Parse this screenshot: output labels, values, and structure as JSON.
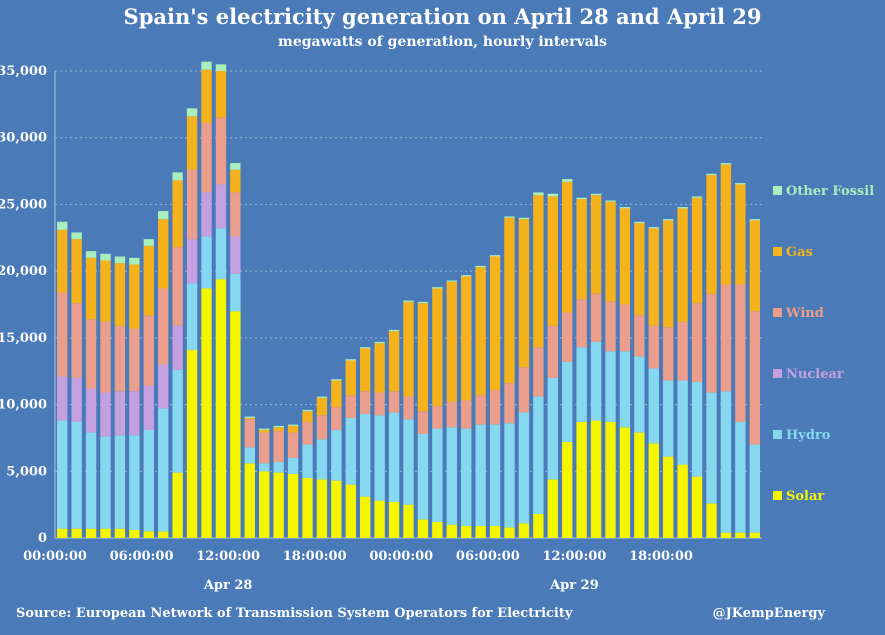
{
  "chart_data": {
    "type": "bar",
    "stacked": true,
    "title": "Spain's electricity generation on April 28 and April 29",
    "subtitle": "megawatts of generation, hourly intervals",
    "xlabel": "",
    "ylabel": "",
    "ylim": [
      0,
      35000
    ],
    "yticks": [
      "0",
      "5,000",
      "10,000",
      "15,000",
      "20,000",
      "25,000",
      "30,000",
      "35,000"
    ],
    "ytick_values": [
      0,
      5000,
      10000,
      15000,
      20000,
      25000,
      30000,
      35000
    ],
    "grid": true,
    "xtick_labels": [
      {
        "hour": 0,
        "label": "00:00:00"
      },
      {
        "hour": 6,
        "label": "06:00:00"
      },
      {
        "hour": 12,
        "label": "12:00:00"
      },
      {
        "hour": 18,
        "label": "18:00:00"
      },
      {
        "hour": 24,
        "label": "00:00:00"
      },
      {
        "hour": 30,
        "label": "06:00:00"
      },
      {
        "hour": 36,
        "label": "12:00:00"
      },
      {
        "hour": 42,
        "label": "18:00:00"
      }
    ],
    "day_labels": [
      {
        "hour": 12,
        "label": "Apr 28"
      },
      {
        "hour": 36,
        "label": "Apr 29"
      }
    ],
    "legend_placement": "right",
    "series": [
      {
        "name": "Solar",
        "color": "#f5f500",
        "values": [
          700,
          700,
          700,
          700,
          700,
          600,
          500,
          500,
          4900,
          14100,
          18700,
          19400,
          17000,
          5600,
          5000,
          4900,
          4800,
          4500,
          4400,
          4300,
          4000,
          3100,
          2800,
          2700,
          2500,
          1400,
          1200,
          1000,
          900,
          900,
          900,
          800,
          1100,
          1800,
          4400,
          7200,
          8700,
          8800,
          8700,
          8300,
          7900,
          7100,
          6100,
          5500,
          4600,
          2600,
          400,
          400,
          400
        ]
      },
      {
        "name": "Hydro",
        "color": "#85d8f0",
        "values": [
          8100,
          8000,
          7200,
          6900,
          7000,
          7100,
          7600,
          9200,
          7700,
          5000,
          3900,
          3800,
          2800,
          1200,
          600,
          800,
          1200,
          2500,
          3000,
          3800,
          5000,
          6200,
          6400,
          6700,
          6400,
          6400,
          7000,
          7300,
          7300,
          7600,
          7600,
          7800,
          8300,
          8800,
          7600,
          6000,
          5600,
          5900,
          5300,
          5700,
          5700,
          5600,
          5700,
          6300,
          7100,
          8300,
          10600,
          8300,
          6600
        ]
      },
      {
        "name": "Nuclear",
        "color": "#c4a0e0",
        "values": [
          3300,
          3300,
          3300,
          3300,
          3300,
          3300,
          3300,
          3300,
          3300,
          3300,
          3300,
          3300,
          2800,
          0,
          0,
          0,
          0,
          0,
          0,
          0,
          0,
          0,
          0,
          0,
          0,
          0,
          0,
          0,
          0,
          0,
          0,
          0,
          0,
          0,
          0,
          0,
          0,
          0,
          0,
          0,
          0,
          0,
          0,
          0,
          0,
          0,
          0,
          0,
          0
        ]
      },
      {
        "name": "Wind",
        "color": "#eb9e8c",
        "values": [
          6300,
          5600,
          5200,
          5300,
          4900,
          4700,
          5300,
          5700,
          5900,
          5200,
          5200,
          5000,
          3300,
          2100,
          2300,
          2300,
          1900,
          1700,
          1800,
          1700,
          1700,
          1700,
          1700,
          1600,
          1700,
          1700,
          1700,
          1900,
          2100,
          2200,
          2600,
          3000,
          3400,
          3700,
          3900,
          3700,
          3600,
          3600,
          3700,
          3500,
          3100,
          3200,
          4000,
          4400,
          5900,
          7400,
          8000,
          10300,
          10000
        ]
      },
      {
        "name": "Gas",
        "color": "#f5b21b",
        "values": [
          4700,
          4800,
          4600,
          4600,
          4700,
          4800,
          5200,
          5200,
          5000,
          4000,
          4000,
          3500,
          1700,
          100,
          200,
          300,
          500,
          800,
          1300,
          2000,
          2600,
          3200,
          3700,
          4500,
          7100,
          8100,
          8800,
          9000,
          9300,
          9600,
          10000,
          12400,
          11100,
          11400,
          9700,
          9800,
          7500,
          7400,
          7500,
          7200,
          6900,
          7300,
          8000,
          8500,
          7900,
          8900,
          9000,
          7500,
          6800
        ]
      },
      {
        "name": "Other Fossil",
        "color": "#a9efbe",
        "values": [
          600,
          500,
          500,
          500,
          500,
          500,
          500,
          600,
          600,
          600,
          600,
          500,
          500,
          100,
          100,
          100,
          100,
          100,
          100,
          100,
          100,
          100,
          100,
          100,
          100,
          100,
          100,
          100,
          100,
          100,
          100,
          100,
          100,
          200,
          200,
          200,
          100,
          100,
          100,
          100,
          100,
          100,
          100,
          100,
          100,
          100,
          100,
          100,
          100
        ]
      }
    ]
  },
  "footer": {
    "source": "Source: European Network of Transmission System Operators for Electricity",
    "credit": "@JKempEnergy"
  }
}
